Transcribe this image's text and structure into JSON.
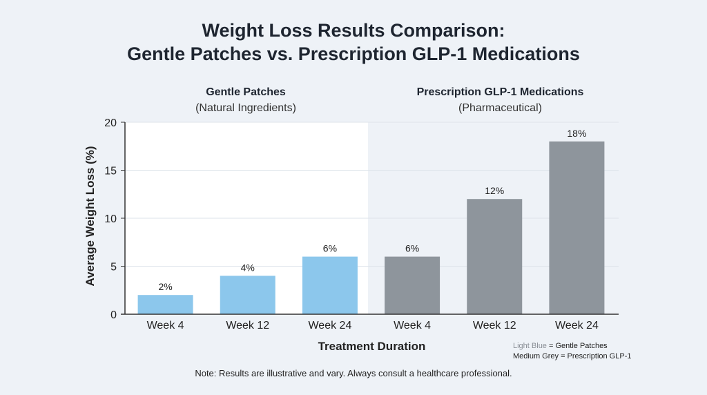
{
  "chart_data": {
    "type": "bar",
    "title": "Weight Loss Results Comparison:",
    "subtitle": "Gentle Patches vs. Prescription GLP-1 Medications",
    "groups": [
      {
        "name": "Gentle Patches",
        "subname": "(Natural Ingredients)",
        "color": "#8cc7ec"
      },
      {
        "name": "Prescription GLP-1 Medications",
        "subname": "(Pharmaceutical)",
        "color": "#8e959c"
      }
    ],
    "categories": [
      "Week 4",
      "Week 12",
      "Week 24",
      "Week 4",
      "Week 12",
      "Week 24"
    ],
    "values": [
      2,
      4,
      6,
      6,
      12,
      18
    ],
    "data_labels": [
      "2%",
      "4%",
      "6%",
      "6%",
      "12%",
      "18%"
    ],
    "series_group": [
      0,
      0,
      0,
      1,
      1,
      1
    ],
    "xlabel": "Treatment Duration",
    "ylabel": "Average Weight Loss (%)",
    "ylim": [
      0,
      20
    ],
    "yticks": [
      0,
      5,
      10,
      15,
      20
    ],
    "grid": true
  },
  "legend": {
    "line1_key": "Light Blue",
    "line1_rest": " = Gentle Patches",
    "line2": "Medium Grey = Prescription GLP-1"
  },
  "note": "Note: Results are illustrative and vary. Always consult a healthcare professional."
}
